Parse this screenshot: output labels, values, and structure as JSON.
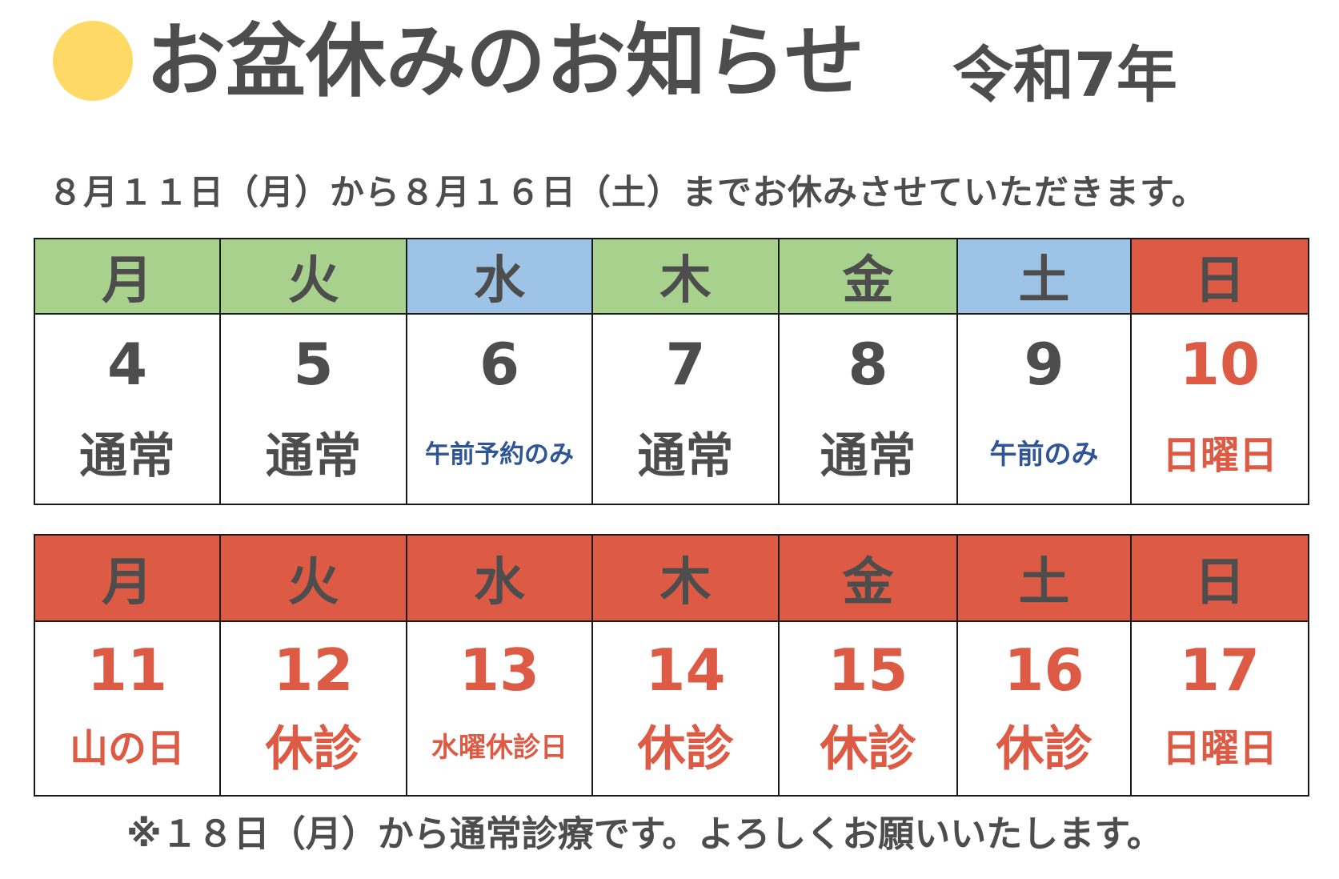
{
  "header": {
    "title": "お盆休みのお知らせ",
    "era": "令和7年",
    "dot_color": "#ffd966"
  },
  "notice": "８月１１日（月）から８月１６日（土）までお休みさせていただきます。",
  "colors": {
    "green": "#a9d18e",
    "blue": "#9dc3e6",
    "red": "#dd5a44",
    "gray_text": "#4d4d4d",
    "blue_text": "#2f5597"
  },
  "week1": [
    {
      "day": "月",
      "date": "4",
      "note": "通常",
      "header_color": "#a9d18e",
      "num_color": "#4d4d4d",
      "note_color": "#4d4d4d"
    },
    {
      "day": "火",
      "date": "5",
      "note": "通常",
      "header_color": "#a9d18e",
      "num_color": "#4d4d4d",
      "note_color": "#4d4d4d"
    },
    {
      "day": "水",
      "date": "6",
      "note": "午前予約のみ",
      "header_color": "#9dc3e6",
      "num_color": "#4d4d4d",
      "note_color": "#2f5597"
    },
    {
      "day": "木",
      "date": "7",
      "note": "通常",
      "header_color": "#a9d18e",
      "num_color": "#4d4d4d",
      "note_color": "#4d4d4d"
    },
    {
      "day": "金",
      "date": "8",
      "note": "通常",
      "header_color": "#a9d18e",
      "num_color": "#4d4d4d",
      "note_color": "#4d4d4d"
    },
    {
      "day": "土",
      "date": "9",
      "note": "午前のみ",
      "header_color": "#9dc3e6",
      "num_color": "#4d4d4d",
      "note_color": "#2f5597"
    },
    {
      "day": "日",
      "date": "10",
      "note": "日曜日",
      "header_color": "#dd5a44",
      "num_color": "#dd5a44",
      "note_color": "#dd5a44"
    }
  ],
  "week2": [
    {
      "day": "月",
      "date": "11",
      "note": "山の日",
      "header_color": "#dd5a44",
      "num_color": "#dd5a44",
      "note_color": "#dd5a44"
    },
    {
      "day": "火",
      "date": "12",
      "note": "休診",
      "header_color": "#dd5a44",
      "num_color": "#dd5a44",
      "note_color": "#dd5a44"
    },
    {
      "day": "水",
      "date": "13",
      "note": "水曜休診日",
      "header_color": "#dd5a44",
      "num_color": "#dd5a44",
      "note_color": "#dd5a44"
    },
    {
      "day": "木",
      "date": "14",
      "note": "休診",
      "header_color": "#dd5a44",
      "num_color": "#dd5a44",
      "note_color": "#dd5a44"
    },
    {
      "day": "金",
      "date": "15",
      "note": "休診",
      "header_color": "#dd5a44",
      "num_color": "#dd5a44",
      "note_color": "#dd5a44"
    },
    {
      "day": "土",
      "date": "16",
      "note": "休診",
      "header_color": "#dd5a44",
      "num_color": "#dd5a44",
      "note_color": "#dd5a44"
    },
    {
      "day": "日",
      "date": "17",
      "note": "日曜日",
      "header_color": "#dd5a44",
      "num_color": "#dd5a44",
      "note_color": "#dd5a44"
    }
  ],
  "footer": "※１８日（月）から通常診療です。よろしくお願いいたします。"
}
